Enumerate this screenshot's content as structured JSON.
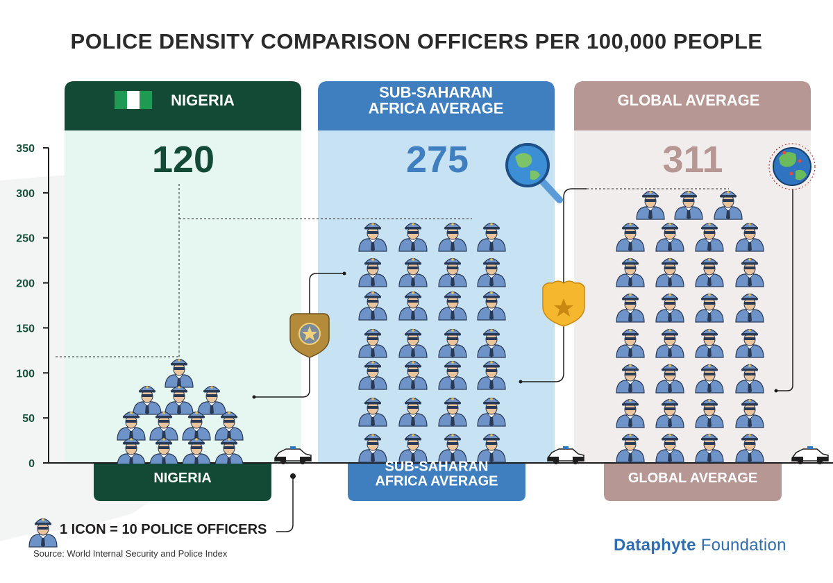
{
  "title": "POLICE DENSITY COMPARISON OFFICERS PER 100,000 PEOPLE",
  "legend": {
    "label": "1 ICON = 10 POLICE OFFICERS",
    "icon": "police-officer-icon"
  },
  "source": "Source: World Internal Security and Police Index",
  "brand": {
    "primary": "Dataphyte",
    "secondary": "Foundation"
  },
  "colors": {
    "nigeria": "#124a36",
    "nigeria_bg": "#e6f6f0",
    "ssa": "#3f7fc0",
    "ssa_bg": "#c7e2f3",
    "global": "#b79794",
    "global_bg": "#f1edec",
    "axis_text": "#15503a",
    "officer": "#6d93c9"
  },
  "chart_data": {
    "type": "bar",
    "title": "POLICE DENSITY COMPARISON OFFICERS PER 100,000 PEOPLE",
    "categories": [
      "NIGERIA",
      "SUB-SAHARAN AFRICA AVERAGE",
      "GLOBAL AVERAGE"
    ],
    "values": [
      120,
      275,
      311
    ],
    "value_labels": [
      "120",
      "275",
      "311"
    ],
    "ylim": [
      0,
      350
    ],
    "yticks": [
      0,
      50,
      100,
      150,
      200,
      250,
      300,
      350
    ],
    "grid": false,
    "unit_per_icon": 10,
    "headers": [
      "NIGERIA",
      "SUB-SAHARAN AFRICA AVERAGE",
      "GLOBAL AVERAGE"
    ],
    "footers": [
      "NIGERIA",
      "SUB-SAHARAN AFRICA AVERAGE",
      "GLOBAL AVERAGE"
    ]
  }
}
